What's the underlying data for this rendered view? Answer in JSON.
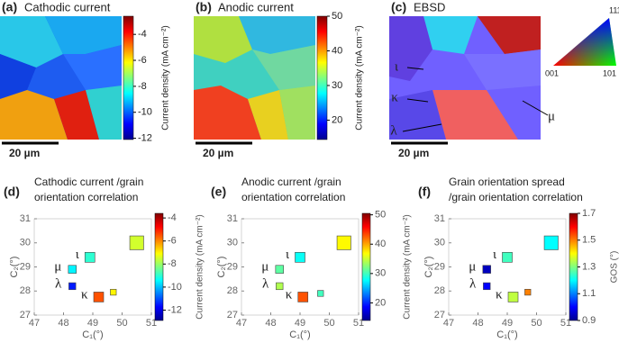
{
  "maps": [
    {
      "label": "(a)",
      "title": "Cathodic current",
      "colorbar_label": "Current density (mA cm⁻²)",
      "clim": [
        -12.1,
        -2.6
      ],
      "ticks": [
        -4,
        -6,
        -8,
        -10,
        -12
      ],
      "scale_bar": "20 µm"
    },
    {
      "label": "(b)",
      "title": "Anodic current",
      "colorbar_label": "Current density (mA cm⁻²)",
      "clim": [
        14.4,
        50
      ],
      "ticks": [
        50,
        40,
        30,
        20
      ],
      "scale_bar": "20 µm"
    },
    {
      "label": "(c)",
      "title": "EBSD",
      "scale_bar": "20 µm",
      "grain_labels": [
        "ι",
        "κ",
        "λ",
        "μ"
      ],
      "ipf_labels": [
        "111",
        "001",
        "101"
      ]
    }
  ],
  "chart_data": [
    {
      "type": "scatter",
      "label": "(d)",
      "title": [
        "Cathodic current /grain",
        "orientation correlation"
      ],
      "xlabel": "C₁(°)",
      "ylabel": "C₂(°)",
      "xlim": [
        47,
        51
      ],
      "ylim": [
        27,
        31
      ],
      "xticks": [
        47,
        48,
        49,
        50,
        51
      ],
      "yticks": [
        27,
        28,
        29,
        30,
        31
      ],
      "x": [
        48.9,
        48.3,
        48.3,
        49.2,
        49.7,
        50.5
      ],
      "y": [
        29.4,
        28.9,
        28.2,
        27.75,
        27.95,
        30.0
      ],
      "sizes": [
        1,
        0.8,
        0.7,
        1,
        0.6,
        1.4
      ],
      "color_values": [
        -9,
        -9.5,
        -11.5,
        -5.5,
        -7,
        -7.5
      ],
      "point_labels": [
        "ι",
        "μ",
        "λ",
        "κ",
        null,
        null
      ],
      "colormap": "jet",
      "colorbar_label": "Current density (mA cm⁻²)",
      "clim": [
        -12.9,
        -3.6
      ],
      "cticks": [
        -4,
        -6,
        -8,
        -10,
        -12
      ]
    },
    {
      "type": "scatter",
      "label": "(e)",
      "title": [
        "Anodic current /grain",
        "orientation correlation"
      ],
      "xlabel": "C₁(°)",
      "ylabel": "C₂(°)",
      "xlim": [
        47,
        51
      ],
      "ylim": [
        27,
        31
      ],
      "xticks": [
        47,
        48,
        49,
        50,
        51
      ],
      "yticks": [
        27,
        28,
        29,
        30,
        31
      ],
      "x": [
        49.0,
        48.3,
        48.3,
        49.1,
        49.7,
        50.5
      ],
      "y": [
        29.4,
        28.9,
        28.2,
        27.75,
        27.9,
        30.0
      ],
      "sizes": [
        1,
        0.8,
        0.7,
        1,
        0.6,
        1.4
      ],
      "color_values": [
        28,
        31,
        34,
        43,
        30,
        37
      ],
      "point_labels": [
        "ι",
        "μ",
        "λ",
        "κ",
        null,
        null
      ],
      "colormap": "jet",
      "colorbar_label": "Current density (mA cm⁻²)",
      "clim": [
        14,
        50.5
      ],
      "cticks": [
        50,
        40,
        30,
        20
      ]
    },
    {
      "type": "scatter",
      "label": "(f)",
      "title": [
        "Grain orientation spread",
        "/grain orientation correlation"
      ],
      "xlabel": "C₁(°)",
      "ylabel": "C₂(°)",
      "xlim": [
        47,
        51
      ],
      "ylim": [
        27,
        31
      ],
      "xticks": [
        47,
        48,
        49,
        50,
        51
      ],
      "yticks": [
        27,
        28,
        29,
        30,
        31
      ],
      "x": [
        49.0,
        48.3,
        48.3,
        49.2,
        49.7,
        50.5
      ],
      "y": [
        29.4,
        28.9,
        28.2,
        27.75,
        27.95,
        30.0
      ],
      "sizes": [
        1,
        0.8,
        0.7,
        1,
        0.6,
        1.4
      ],
      "color_values": [
        1.25,
        0.95,
        1.0,
        1.35,
        1.5,
        1.2
      ],
      "point_labels": [
        "ι",
        "μ",
        "λ",
        "κ",
        null,
        null
      ],
      "colormap": "jet",
      "colorbar_label": "GOS (°)",
      "clim": [
        0.9,
        1.7
      ],
      "cticks": [
        1.7,
        1.5,
        1.3,
        1.1,
        0.9
      ]
    }
  ]
}
